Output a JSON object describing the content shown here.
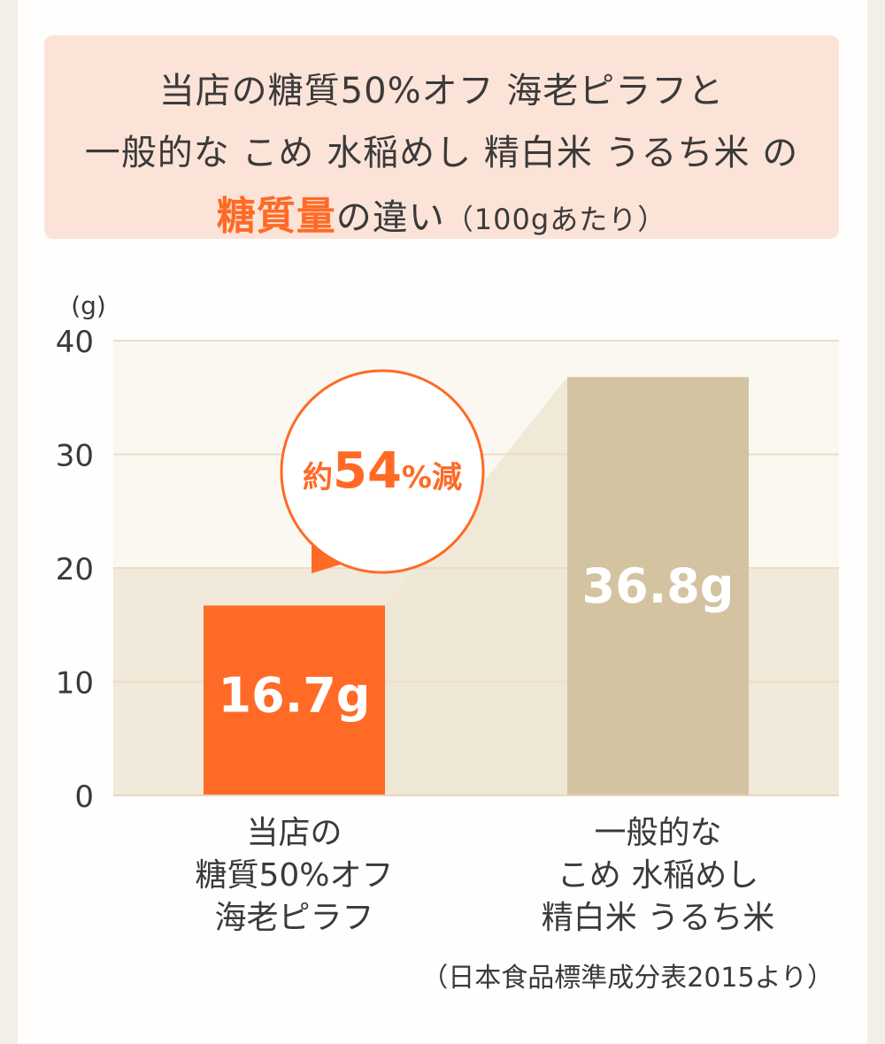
{
  "title": {
    "line1": "当店の糖質50%オフ 海老ピラフと",
    "line2": "一般的な こめ 水稲めし 精白米 うるち米 の",
    "line3_emphasis": "糖質量",
    "line3_rest": "の違い",
    "line3_unit": "（100gあたり）"
  },
  "chart_data": {
    "type": "bar",
    "y_unit_label": "(g)",
    "ylim": [
      0,
      40
    ],
    "yticks": [
      "0",
      "10",
      "20",
      "30",
      "40"
    ],
    "categories": [
      "当店の\n糖質50%オフ\n海老ピラフ",
      "一般的な\nこめ 水稲めし\n精白米 うるち米"
    ],
    "values": [
      16.7,
      36.8
    ],
    "value_labels": [
      "16.7g",
      "36.8g"
    ],
    "bar_colors": [
      "#ff6a26",
      "#d3c3a0"
    ],
    "grid": true,
    "callout": {
      "prefix": "約",
      "number": "54",
      "suffix": "%減"
    }
  },
  "source": "（日本食品標準成分表2015より）",
  "colors": {
    "accent": "#ff6a26",
    "title_bg": "#fce3d8",
    "bar_secondary": "#d3c3a0"
  }
}
